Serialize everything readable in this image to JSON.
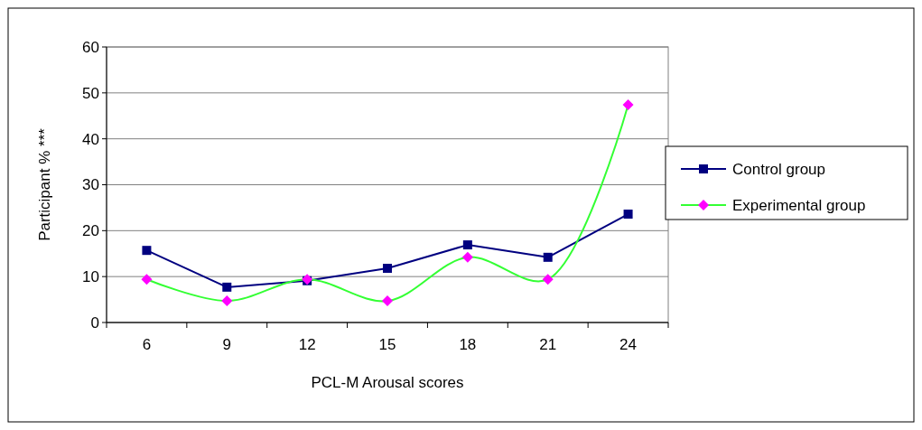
{
  "chart_data": {
    "type": "line",
    "xlabel": "PCL-M  Arousal scores",
    "ylabel": "Participant %  ***",
    "categories": [
      "6",
      "9",
      "12",
      "15",
      "18",
      "21",
      "24"
    ],
    "series": [
      {
        "name": "Control group",
        "color": "#000080",
        "values": [
          15.7,
          7.7,
          9.1,
          11.8,
          16.9,
          14.2,
          23.6
        ],
        "marker": "square"
      },
      {
        "name": "Experimental group",
        "color": "#33ff33",
        "values": [
          9.4,
          4.7,
          9.4,
          4.7,
          14.2,
          9.4,
          47.4
        ],
        "marker": "diamond",
        "colors": [
          "#ff00ff",
          "#ff00ff",
          "#ff00ff",
          "#ff00ff",
          "#ff00ff",
          "#ff00ff",
          "#ff00ff"
        ]
      }
    ],
    "ylim": [
      0,
      60
    ],
    "yticks": [
      0,
      10,
      20,
      30,
      40,
      50,
      60
    ],
    "grid": "y",
    "legend": "right"
  }
}
